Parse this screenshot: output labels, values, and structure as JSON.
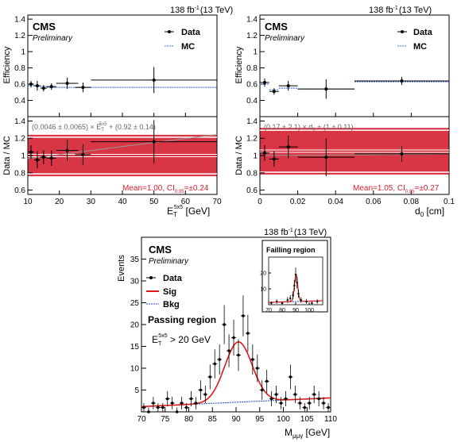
{
  "colors": {
    "data": "#000000",
    "mc": "#4a78d8",
    "band": "#d42030",
    "fit_line": "#999999",
    "sig": "#e01818",
    "bkg": "#2244cc"
  },
  "chart_data": [
    {
      "type": "scatter",
      "name": "eff-vs-et",
      "lumi": "138 fb",
      "lumi_sup": "-1",
      "energy": "(13 TeV)",
      "cms": "CMS",
      "prelim": "Preliminary",
      "ylabel_top": "Efficiency",
      "ylabel_bottom": "Data / MC",
      "xlabel_main": "E",
      "xlabel_sub": "T",
      "xlabel_sup": "5x5",
      "xlabel_unit": " [GeV]",
      "xlim": [
        10,
        70
      ],
      "xticks": [
        "10",
        "20",
        "30",
        "40",
        "50",
        "60",
        "70"
      ],
      "ylim_top": [
        0.2,
        1.45
      ],
      "yticks_top": [
        "0.4",
        "0.6",
        "0.8",
        "1",
        "1.2",
        "1.4"
      ],
      "ylim_bottom": [
        0.55,
        1.45
      ],
      "yticks_bottom": [
        "0.6",
        "0.8",
        "1",
        "1.2",
        "1.4"
      ],
      "legend": [
        "Data",
        "MC"
      ],
      "eff_data": [
        {
          "x": 11,
          "xerr": 1,
          "y": 0.6,
          "yerr": 0.04
        },
        {
          "x": 13,
          "xerr": 1,
          "y": 0.58,
          "yerr": 0.06
        },
        {
          "x": 15,
          "xerr": 1,
          "y": 0.55,
          "yerr": 0.04
        },
        {
          "x": 17.5,
          "xerr": 1.5,
          "y": 0.57,
          "yerr": 0.04
        },
        {
          "x": 22.5,
          "xerr": 3.5,
          "y": 0.61,
          "yerr": 0.07
        },
        {
          "x": 27.5,
          "xerr": 2.5,
          "y": 0.56,
          "yerr": 0.06
        },
        {
          "x": 50,
          "xerr": 20,
          "y": 0.65,
          "yerr": 0.16
        }
      ],
      "eff_mc": [
        {
          "x": 11,
          "xerr": 1,
          "y": 0.58
        },
        {
          "x": 13,
          "xerr": 1,
          "y": 0.58
        },
        {
          "x": 15,
          "xerr": 1,
          "y": 0.57
        },
        {
          "x": 17.5,
          "xerr": 1.5,
          "y": 0.56
        },
        {
          "x": 22.5,
          "xerr": 3.5,
          "y": 0.56
        },
        {
          "x": 27.5,
          "xerr": 2.5,
          "y": 0.56
        },
        {
          "x": 50,
          "xerr": 20,
          "y": 0.56
        }
      ],
      "ratio": [
        {
          "x": 11,
          "xerr": 1,
          "y": 1.04,
          "yerr": 0.08
        },
        {
          "x": 13,
          "xerr": 1,
          "y": 0.95,
          "yerr": 0.1
        },
        {
          "x": 15,
          "xerr": 1,
          "y": 0.98,
          "yerr": 0.08
        },
        {
          "x": 17.5,
          "xerr": 1.5,
          "y": 0.97,
          "yerr": 0.09
        },
        {
          "x": 22.5,
          "xerr": 3.5,
          "y": 1.06,
          "yerr": 0.12
        },
        {
          "x": 27.5,
          "xerr": 2.5,
          "y": 1.01,
          "yerr": 0.12
        },
        {
          "x": 50,
          "xerr": 20,
          "y": 1.16,
          "yerr": 0.25
        }
      ],
      "band": [
        0.76,
        1.24
      ],
      "mean": 1.0,
      "fit": {
        "slope": 0.0046,
        "intercept": 0.92
      },
      "fit_text_pre": "(0.0046 ± 0.0065) × E",
      "fit_text_sub": "T",
      "fit_text_sup": "5x5",
      "fit_text_post": " + (0.92 ± 0.14)",
      "mean_text_pre": "Mean=1.00, CI",
      "mean_text_sub": "0.95",
      "mean_text_post": "=±0.24"
    },
    {
      "type": "scatter",
      "name": "eff-vs-d0",
      "lumi": "138 fb",
      "lumi_sup": "-1",
      "energy": "(13 TeV)",
      "cms": "CMS",
      "prelim": "Preliminary",
      "ylabel_top": "Efficiency",
      "ylabel_bottom": "Data / MC",
      "xlabel_main": "d",
      "xlabel_sub": "0",
      "xlabel_unit": " [cm]",
      "xlim": [
        0,
        0.1
      ],
      "xticks": [
        "0",
        "0.02",
        "0.04",
        "0.06",
        "0.08",
        "0.1"
      ],
      "ylim_top": [
        0.2,
        1.45
      ],
      "yticks_top": [
        "0.4",
        "0.6",
        "0.8",
        "1",
        "1.2",
        "1.4"
      ],
      "ylim_bottom": [
        0.55,
        1.45
      ],
      "yticks_bottom": [
        "0.6",
        "0.8",
        "1",
        "1.2",
        "1.4"
      ],
      "legend": [
        "Data",
        "MC"
      ],
      "eff_data": [
        {
          "x": 0.0025,
          "xerr": 0.0025,
          "y": 0.62,
          "yerr": 0.05
        },
        {
          "x": 0.0075,
          "xerr": 0.0025,
          "y": 0.51,
          "yerr": 0.04
        },
        {
          "x": 0.015,
          "xerr": 0.005,
          "y": 0.58,
          "yerr": 0.06
        },
        {
          "x": 0.035,
          "xerr": 0.015,
          "y": 0.54,
          "yerr": 0.12
        },
        {
          "x": 0.075,
          "xerr": 0.025,
          "y": 0.64,
          "yerr": 0.05
        }
      ],
      "eff_mc": [
        {
          "x": 0.0025,
          "xerr": 0.0025,
          "y": 0.6
        },
        {
          "x": 0.0075,
          "xerr": 0.0025,
          "y": 0.53
        },
        {
          "x": 0.015,
          "xerr": 0.005,
          "y": 0.55
        },
        {
          "x": 0.035,
          "xerr": 0.015,
          "y": 0.54
        },
        {
          "x": 0.075,
          "xerr": 0.025,
          "y": 0.63
        }
      ],
      "ratio": [
        {
          "x": 0.0025,
          "xerr": 0.0025,
          "y": 1.03,
          "yerr": 0.09
        },
        {
          "x": 0.0075,
          "xerr": 0.0025,
          "y": 0.96,
          "yerr": 0.09
        },
        {
          "x": 0.015,
          "xerr": 0.005,
          "y": 1.1,
          "yerr": 0.13
        },
        {
          "x": 0.035,
          "xerr": 0.015,
          "y": 0.98,
          "yerr": 0.22
        },
        {
          "x": 0.075,
          "xerr": 0.025,
          "y": 1.02,
          "yerr": 0.09
        }
      ],
      "band": [
        0.78,
        1.32
      ],
      "mean": 1.05,
      "fit": {
        "slope": 0.17,
        "intercept": 1.0
      },
      "fit_text_pre": "(0.17 ± 2.1) × d",
      "fit_text_sub": "0",
      "fit_text_post": " + (1 ± 0.11)",
      "mean_text_pre": "Mean=1.05, CI",
      "mean_text_sub": "0.95",
      "mean_text_post": "=±0.27"
    },
    {
      "type": "scatter",
      "name": "mass-fit",
      "lumi": "138 fb",
      "lumi_sup": "-1",
      "energy": "(13 TeV)",
      "cms": "CMS",
      "prelim": "Preliminary",
      "ylabel": "Events",
      "xlabel_main": "M",
      "xlabel_sub": "μμγ",
      "xlabel_unit": " [GeV]",
      "xlim": [
        70,
        110
      ],
      "xticks": [
        "70",
        "75",
        "80",
        "85",
        "90",
        "95",
        "100",
        "105",
        "110"
      ],
      "ylim": [
        0,
        40
      ],
      "yticks": [
        "5",
        "10",
        "15",
        "20",
        "25",
        "30",
        "35"
      ],
      "legend": [
        "Data",
        "Sig",
        "Bkg"
      ],
      "region": "Passing region",
      "cut_main": "E",
      "cut_sub": "T",
      "cut_sup": "5x5",
      "cut_post": " > 20 GeV",
      "data": [
        {
          "x": 70.5,
          "y": 1
        },
        {
          "x": 71.5,
          "y": 0
        },
        {
          "x": 72.5,
          "y": 2
        },
        {
          "x": 73.5,
          "y": 1
        },
        {
          "x": 74.5,
          "y": 1
        },
        {
          "x": 75.5,
          "y": 3
        },
        {
          "x": 76.5,
          "y": 2
        },
        {
          "x": 77.5,
          "y": 0
        },
        {
          "x": 78.5,
          "y": 2
        },
        {
          "x": 79.5,
          "y": 1
        },
        {
          "x": 80.5,
          "y": 3
        },
        {
          "x": 81.5,
          "y": 2
        },
        {
          "x": 82.5,
          "y": 5
        },
        {
          "x": 83.5,
          "y": 4
        },
        {
          "x": 84.5,
          "y": 8
        },
        {
          "x": 85.5,
          "y": 11
        },
        {
          "x": 86.5,
          "y": 12
        },
        {
          "x": 87.5,
          "y": 20
        },
        {
          "x": 88.5,
          "y": 14
        },
        {
          "x": 89.5,
          "y": 17
        },
        {
          "x": 90.5,
          "y": 13
        },
        {
          "x": 91.5,
          "y": 22
        },
        {
          "x": 92.5,
          "y": 18
        },
        {
          "x": 93.5,
          "y": 12
        },
        {
          "x": 94.5,
          "y": 10
        },
        {
          "x": 95.5,
          "y": 5
        },
        {
          "x": 96.5,
          "y": 7
        },
        {
          "x": 97.5,
          "y": 3
        },
        {
          "x": 98.5,
          "y": 4
        },
        {
          "x": 99.5,
          "y": 2
        },
        {
          "x": 100.5,
          "y": 3
        },
        {
          "x": 101.5,
          "y": 8
        },
        {
          "x": 102.5,
          "y": 4
        },
        {
          "x": 103.5,
          "y": 2
        },
        {
          "x": 104.5,
          "y": 1
        },
        {
          "x": 105.5,
          "y": 2
        },
        {
          "x": 106.5,
          "y": 4
        },
        {
          "x": 107.5,
          "y": 3
        },
        {
          "x": 108.5,
          "y": 2
        },
        {
          "x": 109.5,
          "y": 1
        }
      ],
      "sig": {
        "amplitude": 13.8,
        "mean": 90.5,
        "sigma": 2.9
      },
      "bkg": {
        "y_at_70": 1.2,
        "y_at_110": 3.2
      },
      "inset": {
        "title": "Failling region",
        "xlim": [
          70,
          110
        ],
        "xticks": [
          "70",
          "80",
          "90",
          "100"
        ],
        "ylim": [
          0,
          30
        ],
        "yticks": [
          "10",
          "20"
        ],
        "data": [
          {
            "x": 72,
            "y": 1
          },
          {
            "x": 76,
            "y": 2
          },
          {
            "x": 80,
            "y": 1
          },
          {
            "x": 84,
            "y": 3
          },
          {
            "x": 86,
            "y": 4
          },
          {
            "x": 88,
            "y": 6
          },
          {
            "x": 89,
            "y": 12
          },
          {
            "x": 90,
            "y": 19
          },
          {
            "x": 91,
            "y": 14
          },
          {
            "x": 92,
            "y": 7
          },
          {
            "x": 94,
            "y": 3
          },
          {
            "x": 98,
            "y": 2
          },
          {
            "x": 102,
            "y": 1
          },
          {
            "x": 106,
            "y": 2
          }
        ],
        "sig": {
          "amplitude": 17,
          "mean": 90.3,
          "sigma": 1.2
        },
        "bkg": {
          "y_at_70": 1.5,
          "y_at_110": 2.5
        }
      }
    }
  ]
}
